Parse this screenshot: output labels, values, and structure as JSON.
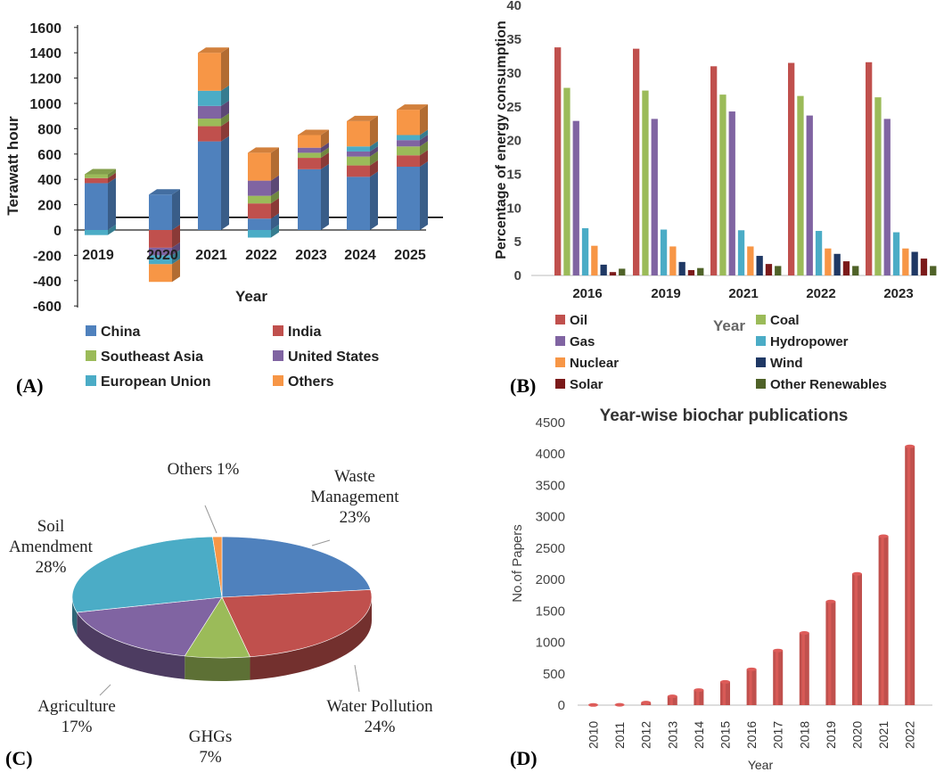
{
  "chart_data": [
    {
      "panel": "(A)",
      "type": "bar",
      "stacked": true,
      "title": "",
      "xlabel": "Year",
      "ylabel": "Terawatt hour",
      "ylim": [
        -600,
        1600
      ],
      "yticks": [
        -600,
        -400,
        -200,
        0,
        200,
        400,
        600,
        800,
        1000,
        1200,
        1400,
        1600
      ],
      "reference_line": 100,
      "categories": [
        "2019",
        "2020",
        "2021",
        "2022",
        "2023",
        "2024",
        "2025"
      ],
      "series": [
        {
          "name": "China",
          "color": "#4f81bd",
          "values": [
            370,
            280,
            700,
            90,
            480,
            420,
            500
          ]
        },
        {
          "name": "India",
          "color": "#c0504d",
          "values": [
            40,
            -140,
            120,
            120,
            90,
            90,
            90
          ]
        },
        {
          "name": "Southeast Asia",
          "color": "#9bbb59",
          "values": [
            30,
            0,
            60,
            60,
            40,
            70,
            70
          ]
        },
        {
          "name": "United States",
          "color": "#8064a2",
          "values": [
            0,
            -60,
            100,
            120,
            40,
            40,
            50
          ]
        },
        {
          "name": "European Union",
          "color": "#4bacc6",
          "values": [
            -40,
            -70,
            120,
            -60,
            0,
            40,
            40
          ]
        },
        {
          "name": "Others",
          "color": "#f79646",
          "values": [
            0,
            -140,
            300,
            220,
            100,
            200,
            200
          ]
        }
      ],
      "legend": {
        "placement": "bottom",
        "entries": [
          "China",
          "India",
          "Southeast Asia",
          "United States",
          "European Union",
          "Others"
        ]
      }
    },
    {
      "panel": "(B)",
      "type": "bar",
      "title": "",
      "xlabel": "Year",
      "ylabel": "Percentage of energy consumption",
      "ylim": [
        0,
        40
      ],
      "yticks": [
        0,
        5,
        10,
        15,
        20,
        25,
        30,
        35,
        40
      ],
      "categories": [
        "2016",
        "2019",
        "2021",
        "2022",
        "2023"
      ],
      "series": [
        {
          "name": "Oil",
          "color": "#c0504d",
          "values": [
            33.8,
            33.6,
            31.0,
            31.5,
            31.6
          ]
        },
        {
          "name": "Coal",
          "color": "#9bbb59",
          "values": [
            27.8,
            27.4,
            26.8,
            26.6,
            26.4
          ]
        },
        {
          "name": "Gas",
          "color": "#8064a2",
          "values": [
            22.9,
            23.2,
            24.3,
            23.7,
            23.2
          ]
        },
        {
          "name": "Hydropower",
          "color": "#4bacc6",
          "values": [
            7.0,
            6.8,
            6.7,
            6.6,
            6.4
          ]
        },
        {
          "name": "Nuclear",
          "color": "#f79646",
          "values": [
            4.4,
            4.3,
            4.3,
            4.0,
            4.0
          ]
        },
        {
          "name": "Wind",
          "color": "#1f3864",
          "values": [
            1.6,
            2.0,
            2.9,
            3.2,
            3.5
          ]
        },
        {
          "name": "Solar",
          "color": "#7b1a1a",
          "values": [
            0.5,
            0.8,
            1.7,
            2.1,
            2.5
          ]
        },
        {
          "name": "Other Renewables",
          "color": "#4f6228",
          "values": [
            1.0,
            1.1,
            1.4,
            1.4,
            1.4
          ]
        }
      ],
      "legend": {
        "placement": "bottom",
        "entries": [
          "Oil",
          "Coal",
          "Gas",
          "Hydropower",
          "Nuclear",
          "Wind",
          "Solar",
          "Other Renewables"
        ]
      }
    },
    {
      "panel": "(C)",
      "type": "pie",
      "title": "",
      "slices": [
        {
          "label": "Waste Management",
          "line1": "Waste",
          "line2": "Management",
          "percent_text": "23%",
          "value": 23,
          "color": "#4f81bd"
        },
        {
          "label": "Water Pollution",
          "line1": "Water Pollution",
          "line2": "",
          "percent_text": "24%",
          "value": 24,
          "color": "#c0504d"
        },
        {
          "label": "GHGs",
          "line1": "GHGs",
          "line2": "",
          "percent_text": "7%",
          "value": 7,
          "color": "#9bbb59"
        },
        {
          "label": "Agriculture",
          "line1": "Agriculture",
          "line2": "",
          "percent_text": "17%",
          "value": 17,
          "color": "#8064a2"
        },
        {
          "label": "Soil Amendment",
          "line1": "Soil",
          "line2": "Amendment",
          "percent_text": "28%",
          "value": 28,
          "color": "#4bacc6"
        },
        {
          "label": "Others",
          "line1": "Others 1%",
          "line2": "",
          "percent_text": "",
          "value": 1,
          "color": "#f79646"
        }
      ]
    },
    {
      "panel": "(D)",
      "type": "bar",
      "title": "Year-wise biochar publications",
      "xlabel": "Year",
      "ylabel": "No.of  Papers",
      "ylim": [
        0,
        4500
      ],
      "yticks": [
        0,
        500,
        1000,
        1500,
        2000,
        2500,
        3000,
        3500,
        4000,
        4500
      ],
      "categories": [
        "2010",
        "2011",
        "2012",
        "2013",
        "2014",
        "2015",
        "2016",
        "2017",
        "2018",
        "2019",
        "2020",
        "2021",
        "2022"
      ],
      "values": [
        3,
        5,
        40,
        140,
        240,
        370,
        570,
        870,
        1150,
        1650,
        2090,
        2690,
        4120
      ],
      "color": "#c0504d"
    }
  ]
}
